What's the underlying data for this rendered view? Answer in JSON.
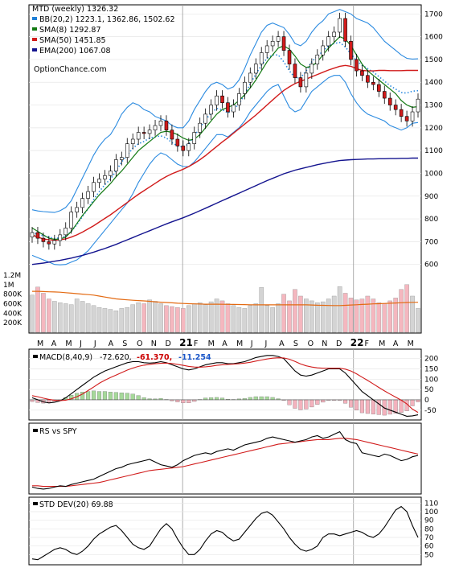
{
  "chart_data": [
    {
      "type": "candlestick",
      "panel": "price",
      "ylim": [
        560,
        1740
      ],
      "yticks": [
        "1700",
        "1600",
        "1500",
        "1400",
        "1300",
        "1200",
        "1100",
        "1000",
        "900",
        "800",
        "700",
        "600"
      ],
      "legend": [
        {
          "label": "MTD (weekly) 1326.32",
          "color": "#000000"
        },
        {
          "label": "BB(20,2) 1223.1, 1362.86, 1502.62",
          "color": "#1f7fd6"
        },
        {
          "label": "SMA(8) 1292.87",
          "color": "#137a13"
        },
        {
          "label": "SMA(50) 1451.85",
          "color": "#d11b1b"
        },
        {
          "label": "EMA(200) 1067.08",
          "color": "#14148f"
        }
      ],
      "watermark": "OptionChance.com",
      "closes": [
        740,
        715,
        700,
        690,
        705,
        730,
        760,
        830,
        850,
        890,
        920,
        960,
        975,
        990,
        1010,
        1060,
        1070,
        1130,
        1150,
        1180,
        1175,
        1190,
        1210,
        1230,
        1190,
        1150,
        1120,
        1100,
        1130,
        1180,
        1220,
        1260,
        1300,
        1340,
        1310,
        1270,
        1300,
        1350,
        1400,
        1440,
        1480,
        1530,
        1560,
        1580,
        1600,
        1540,
        1480,
        1420,
        1380,
        1440,
        1480,
        1520,
        1560,
        1600,
        1620,
        1680,
        1580,
        1500,
        1450,
        1430,
        1400,
        1390,
        1360,
        1330,
        1300,
        1280,
        1250,
        1230,
        1270,
        1326
      ],
      "sma8": [
        760,
        745,
        730,
        715,
        710,
        712,
        720,
        745,
        780,
        815,
        845,
        875,
        905,
        930,
        955,
        985,
        1010,
        1040,
        1070,
        1100,
        1120,
        1140,
        1160,
        1180,
        1185,
        1180,
        1170,
        1155,
        1145,
        1150,
        1170,
        1200,
        1230,
        1260,
        1280,
        1290,
        1300,
        1320,
        1345,
        1375,
        1410,
        1450,
        1490,
        1520,
        1550,
        1560,
        1545,
        1515,
        1480,
        1465,
        1470,
        1490,
        1520,
        1550,
        1575,
        1600,
        1590,
        1560,
        1520,
        1480,
        1450,
        1430,
        1410,
        1390,
        1370,
        1350,
        1320,
        1300,
        1290,
        1293
      ],
      "sma50": [
        730,
        720,
        712,
        708,
        706,
        708,
        712,
        720,
        730,
        742,
        756,
        770,
        786,
        802,
        818,
        836,
        854,
        872,
        890,
        908,
        924,
        940,
        956,
        972,
        986,
        998,
        1008,
        1018,
        1030,
        1044,
        1060,
        1078,
        1098,
        1118,
        1138,
        1156,
        1176,
        1196,
        1216,
        1236,
        1256,
        1278,
        1300,
        1322,
        1344,
        1364,
        1380,
        1394,
        1404,
        1414,
        1424,
        1434,
        1444,
        1454,
        1462,
        1470,
        1474,
        1470,
        1460,
        1452,
        1450,
        1450,
        1452,
        1452,
        1451,
        1451,
        1451,
        1452,
        1452,
        1452
      ],
      "ema200": [
        600,
        603,
        606,
        610,
        614,
        618,
        623,
        628,
        634,
        640,
        647,
        654,
        662,
        670,
        679,
        688,
        698,
        708,
        718,
        728,
        738,
        748,
        758,
        768,
        778,
        787,
        796,
        805,
        815,
        825,
        836,
        847,
        858,
        869,
        880,
        891,
        902,
        913,
        924,
        935,
        946,
        957,
        968,
        978,
        988,
        998,
        1006,
        1014,
        1020,
        1026,
        1032,
        1038,
        1043,
        1048,
        1052,
        1056,
        1058,
        1060,
        1061,
        1062,
        1063,
        1063,
        1064,
        1064,
        1065,
        1065,
        1066,
        1066,
        1067,
        1067
      ],
      "bb_upper": [
        840,
        835,
        832,
        830,
        828,
        836,
        850,
        880,
        930,
        980,
        1030,
        1080,
        1120,
        1150,
        1170,
        1210,
        1260,
        1290,
        1310,
        1300,
        1280,
        1270,
        1250,
        1240,
        1230,
        1210,
        1200,
        1200,
        1230,
        1280,
        1320,
        1360,
        1390,
        1400,
        1390,
        1370,
        1380,
        1410,
        1460,
        1520,
        1570,
        1620,
        1650,
        1660,
        1650,
        1640,
        1610,
        1570,
        1560,
        1580,
        1620,
        1650,
        1670,
        1700,
        1710,
        1720,
        1710,
        1700,
        1680,
        1670,
        1660,
        1640,
        1610,
        1580,
        1560,
        1540,
        1520,
        1505,
        1502,
        1503
      ],
      "bb_lower": [
        640,
        630,
        620,
        610,
        600,
        598,
        600,
        610,
        620,
        640,
        660,
        690,
        720,
        750,
        780,
        810,
        840,
        870,
        910,
        960,
        1000,
        1040,
        1070,
        1090,
        1080,
        1060,
        1040,
        1030,
        1030,
        1050,
        1080,
        1110,
        1140,
        1170,
        1170,
        1160,
        1180,
        1200,
        1230,
        1270,
        1300,
        1330,
        1360,
        1380,
        1390,
        1340,
        1290,
        1270,
        1280,
        1320,
        1360,
        1380,
        1400,
        1420,
        1430,
        1430,
        1400,
        1350,
        1310,
        1280,
        1260,
        1250,
        1240,
        1230,
        1210,
        1200,
        1190,
        1200,
        1220,
        1223
      ]
    },
    {
      "type": "bar",
      "panel": "volume",
      "yticks": [
        "1.2M",
        "1M",
        "800K",
        "600K",
        "400K",
        "200K"
      ],
      "ylim": [
        0,
        1300000
      ],
      "values": [
        780000,
        950000,
        820000,
        700000,
        650000,
        620000,
        600000,
        580000,
        700000,
        650000,
        600000,
        560000,
        520000,
        500000,
        480000,
        450000,
        500000,
        520000,
        580000,
        620000,
        600000,
        680000,
        650000,
        600000,
        560000,
        540000,
        520000,
        500000,
        560000,
        600000,
        620000,
        580000,
        640000,
        700000,
        660000,
        600000,
        560000,
        520000,
        500000,
        560000,
        600000,
        940000,
        560000,
        520000,
        600000,
        800000,
        660000,
        900000,
        760000,
        700000,
        660000,
        620000,
        640000,
        700000,
        760000,
        960000,
        820000,
        720000,
        680000,
        700000,
        760000,
        700000,
        620000,
        600000,
        660000,
        720000,
        900000,
        1000000,
        760000,
        500000
      ],
      "avg": [
        860000,
        860000,
        855000,
        850000,
        845000,
        840000,
        830000,
        820000,
        810000,
        800000,
        790000,
        780000,
        760000,
        740000,
        720000,
        700000,
        690000,
        680000,
        672000,
        665000,
        658000,
        650000,
        640000,
        632000,
        625000,
        618000,
        610000,
        604000,
        600000,
        596000,
        592000,
        590000,
        590000,
        590000,
        588000,
        586000,
        584000,
        582000,
        580000,
        578000,
        576000,
        575000,
        575000,
        575000,
        575000,
        575000,
        575000,
        575000,
        575000,
        575000,
        572000,
        568000,
        565000,
        562000,
        560000,
        560000,
        565000,
        572000,
        578000,
        584000,
        590000,
        596000,
        600000,
        605000,
        610000,
        615000,
        620000,
        625000,
        628000,
        630000
      ]
    },
    {
      "type": "line",
      "panel": "macd",
      "ylim": [
        -90,
        230
      ],
      "yticks": [
        "200",
        "150",
        "100",
        "50",
        "0",
        "-50"
      ],
      "legend": [
        {
          "label": "MACD(8,40,9)",
          "color": "#000000"
        },
        {
          "label": "-72.620,",
          "color": "#000000"
        },
        {
          "label": "-61.370,",
          "color": "#cc0000"
        },
        {
          "label": "-11.254",
          "color": "#1a56c9"
        }
      ],
      "macd": [
        10,
        0,
        -10,
        -15,
        -12,
        -5,
        10,
        30,
        50,
        70,
        90,
        110,
        125,
        140,
        150,
        160,
        170,
        180,
        185,
        185,
        180,
        178,
        180,
        185,
        180,
        170,
        160,
        150,
        145,
        150,
        160,
        170,
        175,
        180,
        180,
        175,
        175,
        180,
        185,
        195,
        205,
        210,
        215,
        215,
        210,
        200,
        170,
        140,
        120,
        115,
        120,
        130,
        140,
        150,
        150,
        150,
        130,
        100,
        70,
        40,
        20,
        0,
        -20,
        -40,
        -50,
        -60,
        -70,
        -80,
        -78,
        -73
      ],
      "signal": [
        20,
        15,
        8,
        2,
        -2,
        -4,
        -2,
        5,
        15,
        28,
        45,
        62,
        80,
        95,
        108,
        120,
        132,
        144,
        154,
        162,
        168,
        172,
        175,
        177,
        178,
        176,
        172,
        167,
        162,
        159,
        158,
        160,
        163,
        167,
        170,
        172,
        173,
        175,
        178,
        182,
        188,
        193,
        198,
        202,
        204,
        203,
        197,
        186,
        174,
        165,
        159,
        155,
        153,
        153,
        153,
        153,
        149,
        140,
        126,
        110,
        94,
        77,
        60,
        43,
        28,
        13,
        -2,
        -20,
        -45,
        -61
      ]
    },
    {
      "type": "line",
      "panel": "rs",
      "legend": [
        {
          "label": "RS vs SPY",
          "color": "#000000"
        }
      ],
      "ylim": [
        0,
        100
      ],
      "rs": [
        8,
        6,
        5,
        6,
        8,
        10,
        9,
        12,
        14,
        16,
        18,
        20,
        24,
        28,
        32,
        36,
        38,
        42,
        44,
        46,
        48,
        50,
        46,
        42,
        40,
        38,
        42,
        48,
        52,
        56,
        58,
        60,
        58,
        62,
        64,
        66,
        64,
        68,
        72,
        74,
        76,
        78,
        82,
        84,
        82,
        80,
        78,
        76,
        78,
        80,
        84,
        86,
        82,
        84,
        88,
        92,
        80,
        76,
        74,
        60,
        58,
        56,
        54,
        58,
        56,
        52,
        48,
        50,
        54,
        56
      ],
      "avg": [
        10,
        10,
        9,
        9,
        9,
        9,
        9,
        10,
        11,
        12,
        13,
        14,
        15,
        17,
        19,
        21,
        23,
        25,
        27,
        29,
        31,
        33,
        34,
        35,
        36,
        37,
        38,
        39,
        41,
        43,
        45,
        47,
        49,
        51,
        53,
        55,
        57,
        59,
        61,
        63,
        65,
        67,
        69,
        71,
        73,
        74,
        75,
        76,
        77,
        78,
        79,
        80,
        80,
        80,
        81,
        82,
        82,
        81,
        80,
        78,
        76,
        74,
        72,
        70,
        68,
        66,
        64,
        62,
        60,
        58
      ]
    },
    {
      "type": "line",
      "panel": "stddev",
      "ylim": [
        40,
        115
      ],
      "yticks": [
        "110",
        "100",
        "90",
        "80",
        "70",
        "60",
        "50"
      ],
      "legend": [
        {
          "label": "STD DEV(20) 69.88",
          "color": "#000000"
        }
      ],
      "values": [
        45,
        44,
        48,
        52,
        56,
        58,
        56,
        52,
        50,
        54,
        60,
        68,
        74,
        78,
        82,
        84,
        78,
        70,
        62,
        58,
        56,
        60,
        70,
        80,
        86,
        80,
        68,
        58,
        50,
        50,
        56,
        66,
        74,
        78,
        76,
        70,
        66,
        68,
        76,
        84,
        92,
        98,
        100,
        96,
        88,
        80,
        70,
        62,
        56,
        54,
        56,
        60,
        70,
        74,
        74,
        72,
        74,
        76,
        78,
        76,
        72,
        70,
        74,
        82,
        92,
        102,
        106,
        100,
        84,
        70
      ]
    }
  ],
  "xaxis": {
    "months": [
      "M",
      "A",
      "M",
      "J",
      "J",
      "A",
      "S",
      "O",
      "N",
      "D",
      "21",
      "F",
      "M",
      "A",
      "M",
      "J",
      "J",
      "A",
      "S",
      "O",
      "N",
      "D",
      "22",
      "F",
      "M",
      "A",
      "M"
    ],
    "year_marks": [
      "21",
      "22"
    ]
  }
}
